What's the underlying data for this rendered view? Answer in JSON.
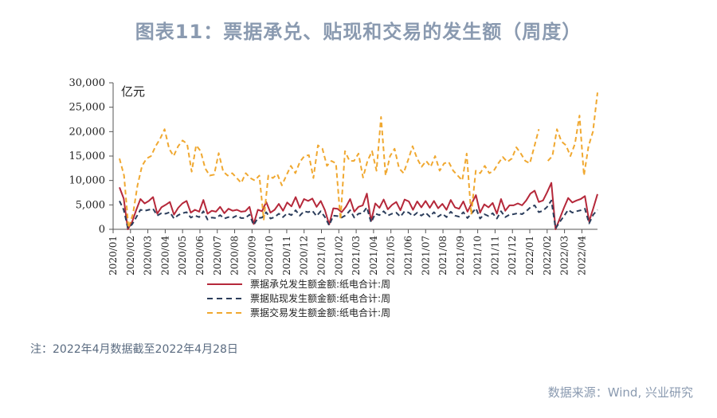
{
  "header": {
    "title": "图表11：票据承兑、贴现和交易的发生额（周度）"
  },
  "footer": {
    "note": "注：2022年4月数据截至2022年4月28日",
    "source": "数据来源：Wind, 兴业研究"
  },
  "chart_data": {
    "type": "line",
    "title": "图表11：票据承兑、贴现和交易的发生额（周度）",
    "unit_label": "亿元",
    "ylim": [
      0,
      30000
    ],
    "yticks": [
      "30,000",
      "25,000",
      "20,000",
      "15,000",
      "10,000",
      "5,000",
      "0"
    ],
    "ytick_values": [
      30000,
      25000,
      20000,
      15000,
      10000,
      5000,
      0
    ],
    "x_tick_labels": [
      "2020/01",
      "2020/02",
      "2020/03",
      "2020/04",
      "2020/05",
      "2020/06",
      "2020/07",
      "2020/08",
      "2020/09",
      "2020/10",
      "2020/11",
      "2020/12",
      "2021/01",
      "2021/02",
      "2021/03",
      "2021/04",
      "2021/05",
      "2021/06",
      "2021/07",
      "2021/08",
      "2021/09",
      "2021/10",
      "2021/11",
      "2021/12",
      "2022/01",
      "2022/02",
      "2022/03",
      "2022/04"
    ],
    "grid": false,
    "legend_position": "bottom",
    "colors": {
      "acceptance": "#b5283a",
      "discount": "#2c3e5c",
      "trading": "#f0a830"
    },
    "series": [
      {
        "name": "票据承兑发生额金额:纸电合计:周",
        "style": "solid",
        "color": "#b5283a",
        "values": [
          8600,
          6300,
          0,
          1500,
          4000,
          6200,
          5300,
          5800,
          6600,
          3200,
          4500,
          5000,
          5600,
          3000,
          4400,
          5300,
          5800,
          3400,
          4000,
          3600,
          6000,
          3200,
          3800,
          3600,
          4600,
          3300,
          4200,
          3800,
          4000,
          3600,
          3700,
          4600,
          1100,
          4000,
          3700,
          5600,
          3400,
          4000,
          5200,
          3800,
          5500,
          4700,
          6600,
          4400,
          6200,
          5800,
          6300,
          4600,
          5800,
          3900,
          1000,
          4300,
          4200,
          3500,
          4600,
          6200,
          3600,
          4600,
          4900,
          7300,
          1700,
          5300,
          4400,
          6100,
          4100,
          5000,
          5600,
          3900,
          6100,
          5700,
          4000,
          5700,
          4500,
          5800,
          4400,
          5800,
          4300,
          5200,
          4000,
          6000,
          4500,
          4200,
          5700,
          3600,
          5300,
          7000,
          3400,
          5100,
          4500,
          5400,
          3200,
          6200,
          3800,
          4900,
          4900,
          5300,
          4900,
          5900,
          7300,
          7900,
          5600,
          5900,
          7600,
          9500,
          0,
          2200,
          4400,
          6400,
          5500,
          5900,
          6200,
          6800,
          1600,
          4300,
          7200
        ]
      },
      {
        "name": "票据贴现发生额金额:纸电合计:周",
        "style": "dashed",
        "color": "#2c3e5c",
        "values": [
          5800,
          4000,
          300,
          1000,
          2500,
          4000,
          3800,
          4000,
          4200,
          2800,
          3300,
          3200,
          3500,
          2200,
          2900,
          3300,
          3500,
          2400,
          2800,
          2500,
          3700,
          2000,
          2400,
          2300,
          2900,
          2200,
          2500,
          2400,
          2800,
          2300,
          2300,
          3000,
          900,
          2300,
          2400,
          3500,
          2200,
          2500,
          3200,
          2500,
          3300,
          2900,
          3900,
          2800,
          3700,
          3500,
          3800,
          2700,
          3700,
          2500,
          800,
          2800,
          2700,
          2400,
          2900,
          3900,
          2400,
          3200,
          3300,
          4500,
          1400,
          3200,
          2900,
          3700,
          2800,
          3200,
          3400,
          2600,
          3700,
          3400,
          2700,
          3400,
          2800,
          3400,
          2600,
          3500,
          2600,
          3200,
          2500,
          3600,
          2800,
          2600,
          3500,
          2300,
          3300,
          4300,
          2200,
          3100,
          2700,
          3300,
          2200,
          3700,
          2500,
          3000,
          3100,
          3300,
          3100,
          3700,
          4500,
          4900,
          3500,
          3800,
          4600,
          5900,
          200,
          1500,
          2700,
          4000,
          3400,
          3700,
          3900,
          4200,
          1200,
          3000,
          4000
        ]
      },
      {
        "name": "票据交易发生额金额:纸电合计:周",
        "style": "dashed",
        "color": "#f0a830",
        "values": [
          14500,
          11000,
          300,
          3200,
          9000,
          13000,
          14500,
          15000,
          17000,
          18500,
          20500,
          16500,
          15000,
          17000,
          18200,
          17500,
          11800,
          17200,
          16000,
          12500,
          11000,
          11200,
          15600,
          11800,
          11000,
          11500,
          10500,
          9500,
          11500,
          10500,
          10000,
          11000,
          2000,
          11000,
          10500,
          11300,
          9000,
          11000,
          13000,
          11500,
          13800,
          15000,
          15200,
          10500,
          17200,
          16500,
          13000,
          14000,
          13500,
          2000,
          16000,
          14000,
          14000,
          15500,
          10600,
          14000,
          16000,
          12000,
          23000,
          11000,
          15000,
          16500,
          12500,
          11500,
          14200,
          17000,
          14500,
          12800,
          14000,
          12800,
          15000,
          12000,
          13500,
          13800,
          12000,
          11000,
          10000,
          15500,
          3000,
          12000,
          11500,
          13000,
          11500,
          12000,
          13500,
          14800,
          13800,
          14500,
          16800,
          15500,
          14000,
          13500,
          17000,
          20500,
          null,
          14000,
          15000,
          20500,
          18000,
          17200,
          15000,
          17500,
          23300,
          11000,
          17000,
          20000,
          28000
        ]
      }
    ]
  }
}
